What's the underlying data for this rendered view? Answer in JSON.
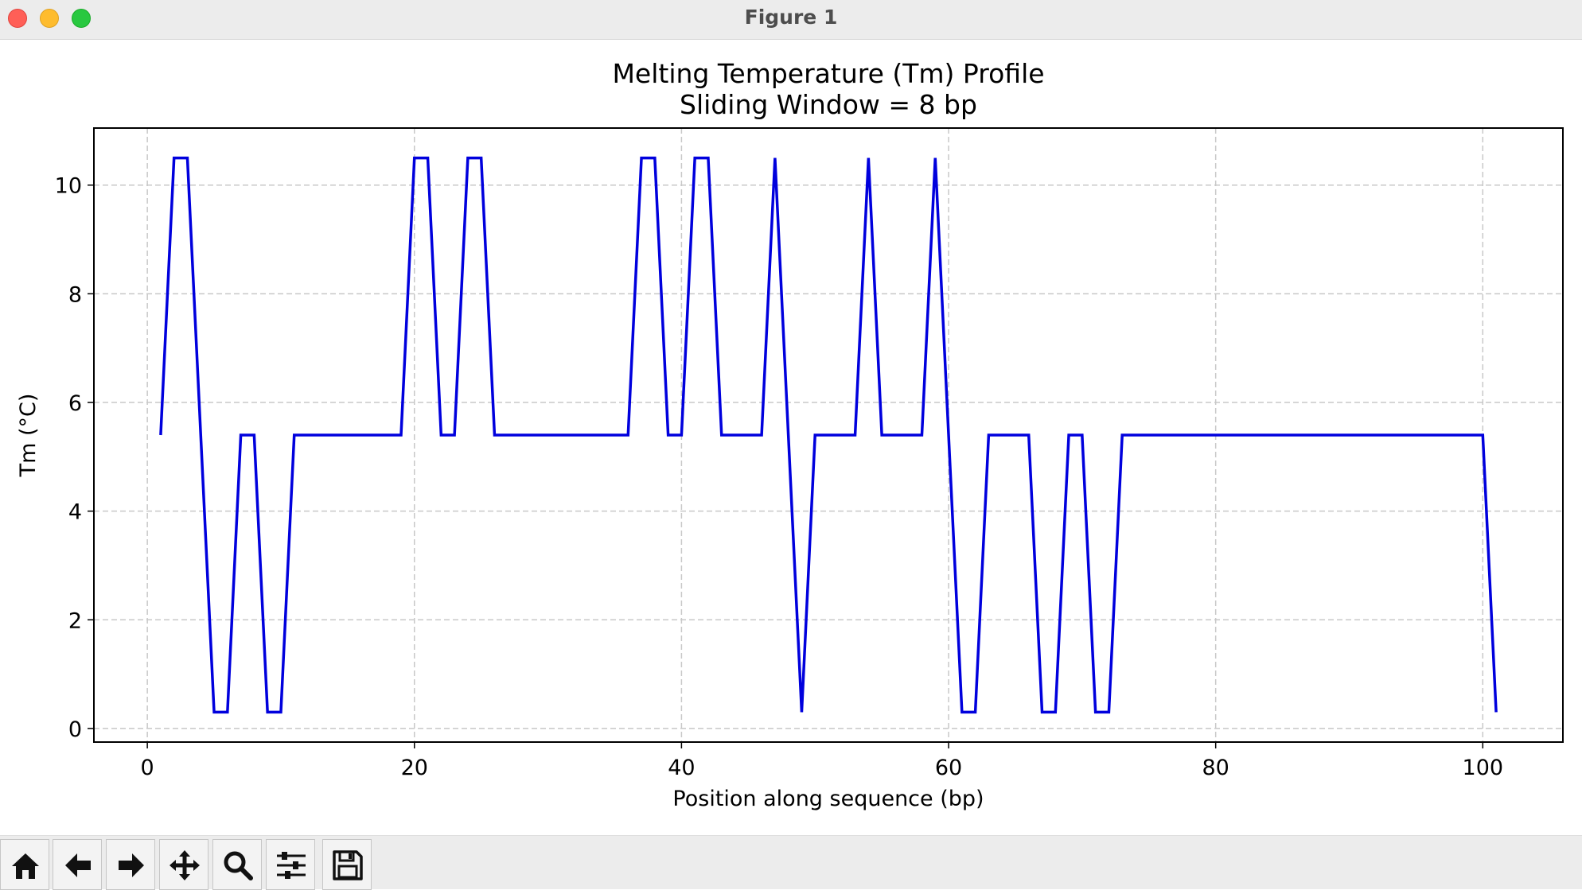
{
  "window": {
    "title": "Figure 1"
  },
  "toolbar": {
    "buttons": [
      {
        "name": "home",
        "icon": "home-icon"
      },
      {
        "name": "back",
        "icon": "arrow-left-icon"
      },
      {
        "name": "forward",
        "icon": "arrow-right-icon"
      },
      {
        "name": "pan",
        "icon": "move-icon"
      },
      {
        "name": "zoom",
        "icon": "magnifier-icon"
      },
      {
        "name": "configure-subplots",
        "icon": "sliders-icon"
      },
      {
        "name": "save",
        "icon": "floppy-disk-icon"
      }
    ]
  },
  "chart_data": {
    "type": "line",
    "title": "Melting Temperature (Tm) Profile",
    "subtitle": "Sliding Window = 8 bp",
    "xlabel": "Position along sequence (bp)",
    "ylabel": "Tm (°C)",
    "xlim": [
      -4,
      106
    ],
    "ylim": [
      -0.25,
      11.05
    ],
    "xticks": [
      0,
      20,
      40,
      60,
      80,
      100
    ],
    "yticks": [
      0,
      2,
      4,
      6,
      8,
      10
    ],
    "grid": true,
    "line_color": "#0000dd",
    "series": [
      {
        "x": [
          1,
          2,
          3,
          4,
          5,
          6,
          7,
          8,
          9,
          10,
          11,
          12,
          13,
          14,
          15,
          16,
          17,
          18,
          19,
          20,
          21,
          22,
          23,
          24,
          25,
          26,
          27,
          28,
          29,
          30,
          31,
          32,
          33,
          34,
          35,
          36,
          37,
          38,
          39,
          40,
          41,
          42,
          43,
          44,
          45,
          46,
          47,
          48,
          49,
          50,
          51,
          52,
          53,
          54,
          55,
          56,
          57,
          58,
          59,
          60,
          61,
          62,
          63,
          64,
          65,
          66,
          67,
          68,
          69,
          70,
          71,
          72,
          73,
          74,
          75,
          76,
          77,
          78,
          79,
          80,
          81,
          82,
          83,
          84,
          85,
          86,
          87,
          88,
          89,
          90,
          91,
          92,
          93,
          94,
          95,
          96,
          97,
          98,
          99,
          100,
          101
        ],
        "y": [
          5.4,
          10.5,
          10.5,
          5.4,
          0.3,
          0.3,
          5.4,
          5.4,
          0.3,
          0.3,
          5.4,
          5.4,
          5.4,
          5.4,
          5.4,
          5.4,
          5.4,
          5.4,
          5.4,
          10.5,
          10.5,
          5.4,
          5.4,
          10.5,
          10.5,
          5.4,
          5.4,
          5.4,
          5.4,
          5.4,
          5.4,
          5.4,
          5.4,
          5.4,
          5.4,
          5.4,
          10.5,
          10.5,
          5.4,
          5.4,
          10.5,
          10.5,
          5.4,
          5.4,
          5.4,
          5.4,
          10.5,
          5.4,
          0.3,
          5.4,
          5.4,
          5.4,
          5.4,
          10.5,
          5.4,
          5.4,
          5.4,
          5.4,
          10.5,
          5.4,
          0.3,
          0.3,
          5.4,
          5.4,
          5.4,
          5.4,
          0.3,
          0.3,
          5.4,
          5.4,
          0.3,
          0.3,
          5.4,
          5.4,
          5.4,
          5.4,
          5.4,
          5.4,
          5.4,
          5.4,
          5.4,
          5.4,
          5.4,
          5.4,
          5.4,
          5.4,
          5.4,
          5.4,
          5.4,
          5.4,
          5.4,
          5.4,
          5.4,
          5.4,
          5.4,
          5.4,
          5.4,
          5.4,
          5.4,
          5.4,
          0.3
        ]
      }
    ]
  }
}
